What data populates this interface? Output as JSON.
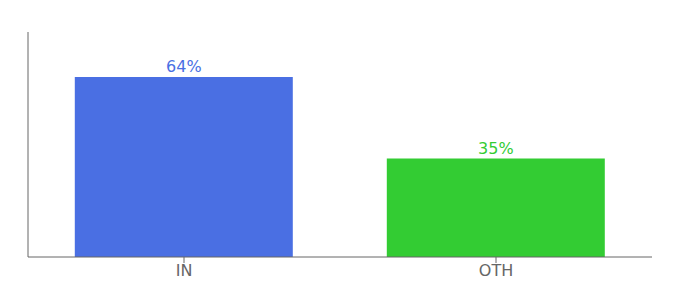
{
  "chart_data": {
    "type": "bar",
    "categories": [
      "IN",
      "OTH"
    ],
    "values": [
      64,
      35
    ],
    "value_labels": [
      "64%",
      "35%"
    ],
    "colors": [
      "#4a6fe3",
      "#33cc33"
    ],
    "ylim": [
      0,
      80
    ],
    "data_labels": true,
    "tick_labels": "x",
    "grid": false
  }
}
